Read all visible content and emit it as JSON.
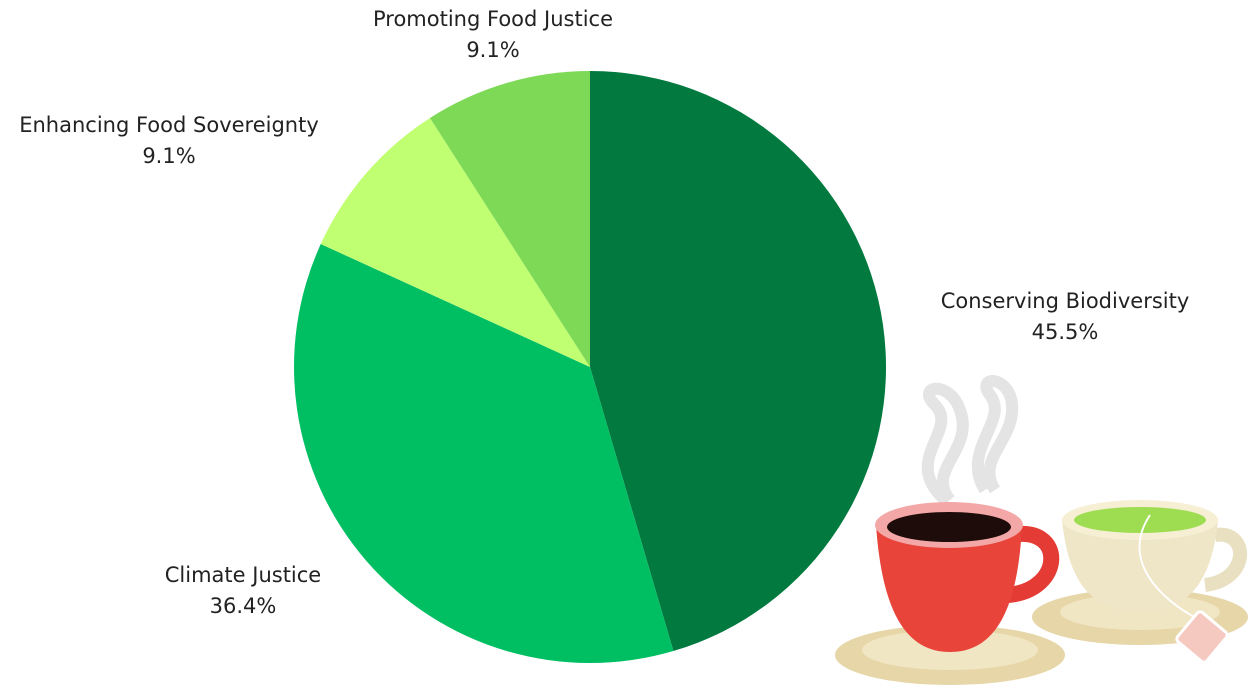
{
  "chart_data": {
    "type": "pie",
    "categories": [
      "Conserving Biodiversity",
      "Climate Justice",
      "Enhancing Food Sovereignty",
      "Promoting Food Justice"
    ],
    "values": [
      45.5,
      36.4,
      9.1,
      9.1
    ],
    "value_labels": [
      "45.5%",
      "36.4%",
      "9.1%",
      "9.1%"
    ],
    "colors": [
      "#027a3f",
      "#00bf63",
      "#c1ff72",
      "#7ed957"
    ]
  }
}
